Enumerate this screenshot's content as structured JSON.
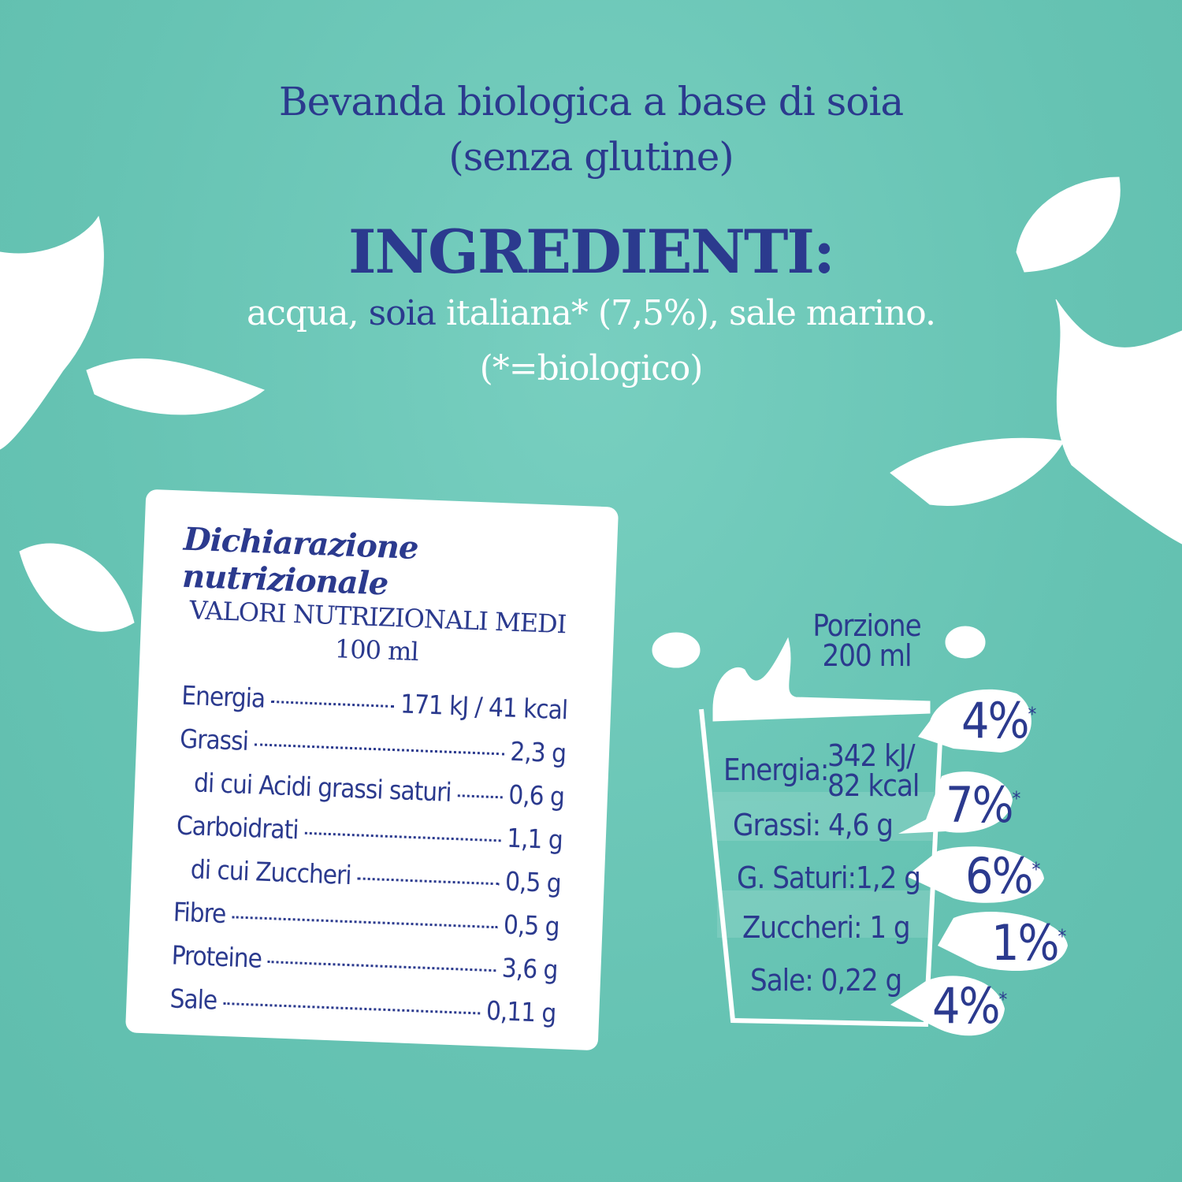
{
  "header": {
    "title_line1": "Bevanda biologica a base di soia",
    "title_line2": "(senza glutine)",
    "ingredients_heading": "INGREDIENTI:",
    "ingredients_pre": "acqua, ",
    "ingredients_highlight": "soia",
    "ingredients_post": " italiana* (7,5%), sale marino.",
    "ingredients_note": "(*=biologico)"
  },
  "nutrition_card": {
    "title": "Dichiarazione nutrizionale",
    "subtitle_line1": "VALORI NUTRIZIONALI MEDI",
    "subtitle_line2": "100 ml",
    "rows": [
      {
        "label": "Energia",
        "value": "171 kJ / 41 kcal"
      },
      {
        "label": "Grassi",
        "value": "2,3 g"
      },
      {
        "label": "di cui Acidi grassi saturi",
        "value": "0,6 g"
      },
      {
        "label": "Carboidrati",
        "value": "1,1 g"
      },
      {
        "label": "di cui Zuccheri",
        "value": "0,5 g"
      },
      {
        "label": "Fibre",
        "value": "0,5 g"
      },
      {
        "label": "Proteine",
        "value": "3,6 g"
      },
      {
        "label": "Sale",
        "value": "0,11 g"
      }
    ]
  },
  "portion": {
    "title_line1": "Porzione",
    "title_line2": "200 ml",
    "items": [
      {
        "label": "Energia:",
        "value_line1": "342 kJ/",
        "value_line2": "82 kcal",
        "percent": "4%",
        "mark": "*"
      },
      {
        "label": "Grassi:",
        "value": "4,6 g",
        "percent": "7%",
        "mark": "*"
      },
      {
        "label": "G. Saturi:",
        "value": "1,2 g",
        "percent": "6%",
        "mark": "*"
      },
      {
        "label": "Zuccheri:",
        "value": "1 g",
        "percent": "1%",
        "mark": "*"
      },
      {
        "label": "Sale:",
        "value": "0,22 g",
        "percent": "4%",
        "mark": "*"
      }
    ]
  },
  "colors": {
    "background": "#6cc7b7",
    "text_navy": "#2b3a8e",
    "white": "#ffffff"
  }
}
